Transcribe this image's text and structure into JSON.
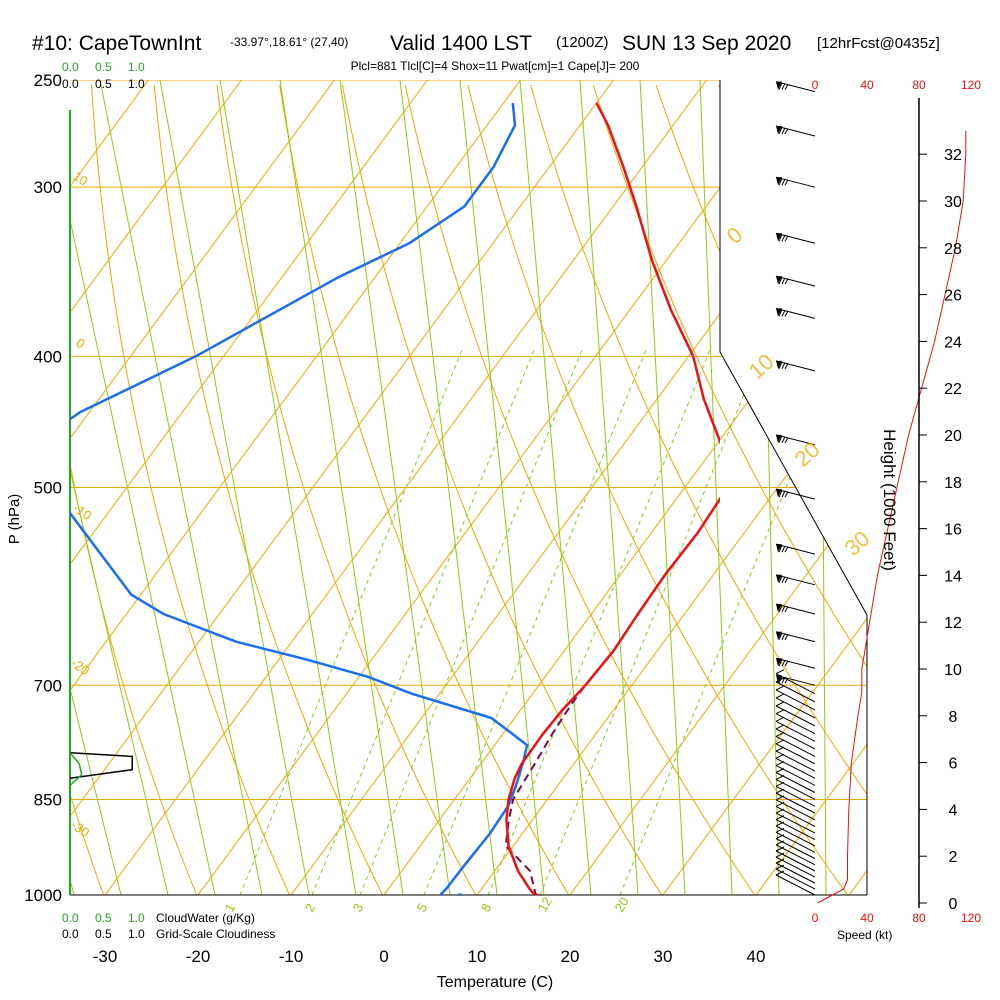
{
  "header": {
    "site": "#10: CapeTownInt",
    "coords": "-33.97°,18.61° (27,40)",
    "valid": "Valid 1400 LST",
    "zulu": "(1200Z)",
    "date": "SUN 13 Sep 2020",
    "fcst": "[12hrFcst@0435z]",
    "indices": "Plcl=881 Tlcl[C]=4 Shox=11 Pwat[cm]=1 Cape[J]= 200"
  },
  "colors": {
    "temperature": "#ee1111",
    "dewpoint": "#1a6ef0",
    "parcel": "#7a0a55",
    "isotherm": "#f0a800",
    "dry_adiabat": "#f0a800",
    "moist_adiabat": "#90cc10",
    "mixing_ratio": "#80cc20",
    "cloud": "#22aa22",
    "speed": "#ee1111",
    "indices": "#8b0b5e"
  },
  "chart_data": {
    "type": "skew-t log-p sounding",
    "xlabel": "Temperature (C)",
    "ylabel": "P (hPa)",
    "y2label": "Height (1000 Feet)",
    "x_ticks": [
      -30,
      -20,
      -10,
      0,
      10,
      20,
      30,
      40
    ],
    "pressure_ticks": [
      250,
      300,
      400,
      500,
      700,
      850,
      1000
    ],
    "height_ticks_kft": [
      0,
      2,
      4,
      6,
      8,
      10,
      12,
      14,
      16,
      18,
      20,
      22,
      24,
      26,
      28,
      30,
      32
    ],
    "temperature_profile": {
      "name": "Temperature",
      "points": [
        [
          1003,
          16.5
        ],
        [
          990,
          15.2
        ],
        [
          960,
          12.5
        ],
        [
          920,
          9.5
        ],
        [
          880,
          7.2
        ],
        [
          850,
          5.8
        ],
        [
          820,
          4.8
        ],
        [
          800,
          4.4
        ],
        [
          760,
          4.3
        ],
        [
          730,
          4.5
        ],
        [
          700,
          5.0
        ],
        [
          660,
          5.3
        ],
        [
          620,
          5.0
        ],
        [
          580,
          4.8
        ],
        [
          540,
          5.0
        ],
        [
          500,
          4.6
        ],
        [
          470,
          1.3
        ],
        [
          430,
          -5.0
        ],
        [
          400,
          -9.5
        ],
        [
          370,
          -15.5
        ],
        [
          340,
          -21.5
        ],
        [
          310,
          -27.5
        ],
        [
          290,
          -32.0
        ],
        [
          270,
          -37.0
        ],
        [
          260,
          -40.0
        ]
      ]
    },
    "dewpoint_profile": {
      "name": "Dewpoint",
      "points": [
        [
          1003,
          6.0
        ],
        [
          990,
          6.2
        ],
        [
          950,
          6.3
        ],
        [
          900,
          6.5
        ],
        [
          860,
          6.3
        ],
        [
          830,
          5.5
        ],
        [
          800,
          4.5
        ],
        [
          775,
          3.5
        ],
        [
          740,
          -2.5
        ],
        [
          710,
          -13.0
        ],
        [
          690,
          -19.0
        ],
        [
          670,
          -27.0
        ],
        [
          650,
          -36.0
        ],
        [
          620,
          -46.0
        ],
        [
          600,
          -51.0
        ],
        [
          470,
          -74.0
        ],
        [
          440,
          -71.0
        ],
        [
          400,
          -63.0
        ],
        [
          350,
          -54.0
        ],
        [
          330,
          -49.0
        ],
        [
          310,
          -46.0
        ],
        [
          290,
          -46.0
        ],
        [
          270,
          -47.0
        ],
        [
          260,
          -49.0
        ]
      ]
    },
    "parcel_profile": {
      "name": "Parcel",
      "points": [
        [
          1003,
          16.5
        ],
        [
          960,
          13.8
        ],
        [
          920,
          9.2
        ],
        [
          881,
          7.5
        ],
        [
          850,
          6.3
        ],
        [
          800,
          5.8
        ],
        [
          760,
          5.3
        ],
        [
          720,
          5.0
        ],
        [
          700,
          5.0
        ]
      ]
    },
    "surface_points": [
      {
        "name": "T2m",
        "p": 1003,
        "t": 16.5
      },
      {
        "name": "Td2m",
        "p": 1003,
        "t": 8.3
      }
    ],
    "isotherm_labels": [
      0,
      10,
      20,
      30
    ],
    "dry_adiabat_labels": [
      10,
      0,
      -10,
      -20,
      -30
    ],
    "moist_adiabat_labels": [
      1,
      2,
      3,
      5,
      8,
      12,
      20
    ],
    "cloud_panel": {
      "scale_cloudwater": [
        "0.0",
        "0.5",
        "1.0"
      ],
      "scale_cloudiness": [
        "0.0",
        "0.5",
        "1.0"
      ],
      "label_cloudwater": "CloudWater (g/Kg)",
      "label_cloudiness": "Grid-Scale Cloudiness",
      "cloudiness_points": [
        [
          820,
          0.0
        ],
        [
          808,
          0.8
        ],
        [
          790,
          0.8
        ],
        [
          785,
          0.0
        ]
      ],
      "cloudwater_points": [
        [
          830,
          0.0
        ],
        [
          815,
          0.15
        ],
        [
          800,
          0.12
        ],
        [
          785,
          0.0
        ]
      ]
    },
    "wind": {
      "speed_ticks_kt": [
        0,
        40,
        80,
        120
      ],
      "speed_label": "Speed (kt)",
      "speed_profile_kft_kt": [
        [
          0,
          2
        ],
        [
          0.3,
          12
        ],
        [
          0.6,
          22
        ],
        [
          1,
          25
        ],
        [
          2,
          25
        ],
        [
          4,
          26
        ],
        [
          6,
          28
        ],
        [
          8,
          33
        ],
        [
          9,
          36
        ],
        [
          10,
          36
        ],
        [
          12,
          42
        ],
        [
          14,
          48
        ],
        [
          16,
          56
        ],
        [
          18,
          64
        ],
        [
          20,
          72
        ],
        [
          22,
          82
        ],
        [
          24,
          92
        ],
        [
          26,
          100
        ],
        [
          28,
          108
        ],
        [
          30,
          114
        ],
        [
          32,
          116
        ],
        [
          33,
          116
        ]
      ],
      "barb_levels_hpa": [
        1000,
        990,
        980,
        970,
        960,
        950,
        940,
        930,
        920,
        910,
        900,
        890,
        880,
        870,
        860,
        850,
        840,
        830,
        820,
        810,
        800,
        790,
        780,
        770,
        760,
        750,
        740,
        730,
        720,
        710,
        700,
        680,
        650,
        620,
        590,
        560,
        510,
        465,
        410,
        375,
        355,
        330,
        300,
        275,
        255
      ]
    }
  }
}
